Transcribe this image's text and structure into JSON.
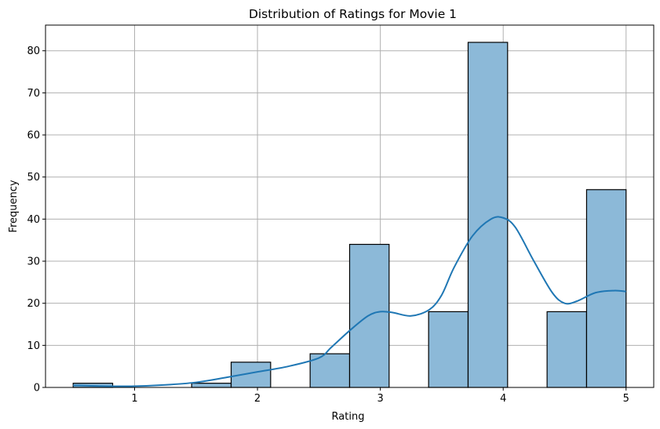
{
  "chart_data": {
    "type": "bar",
    "title": "Distribution of Ratings for Movie 1",
    "xlabel": "Rating",
    "ylabel": "Frequency",
    "xlim": [
      0.275,
      5.225
    ],
    "ylim": [
      0,
      86.1
    ],
    "xticks": [
      1,
      2,
      3,
      4,
      5
    ],
    "yticks": [
      0,
      10,
      20,
      30,
      40,
      50,
      60,
      70,
      80
    ],
    "grid": true,
    "bin_edges": [
      0.5,
      0.8214,
      1.1429,
      1.4643,
      1.7857,
      2.1071,
      2.4286,
      2.75,
      3.0714,
      3.3929,
      3.7143,
      4.0357,
      4.3571,
      4.6786,
      5.0
    ],
    "values": [
      1,
      0,
      0,
      1,
      6,
      0,
      8,
      34,
      0,
      18,
      82,
      0,
      18,
      47
    ],
    "bar_color": "#8cb9d8",
    "bar_edge_color": "#000000",
    "kde": {
      "color": "#1f77b4",
      "x": [
        0.5,
        0.75,
        1.0,
        1.25,
        1.5,
        1.75,
        2.0,
        2.25,
        2.5,
        2.6,
        2.75,
        2.9,
        3.0,
        3.1,
        3.25,
        3.4,
        3.5,
        3.6,
        3.75,
        3.9,
        4.0,
        4.1,
        4.25,
        4.4,
        4.5,
        4.6,
        4.75,
        4.9,
        5.0
      ],
      "y": [
        0.5,
        0.3,
        0.3,
        0.6,
        1.2,
        2.4,
        3.7,
        5.0,
        7.0,
        9.5,
        13.5,
        17.0,
        18.0,
        17.8,
        17.0,
        18.5,
        22.0,
        28.5,
        36.0,
        40.0,
        40.3,
        38.0,
        30.0,
        22.5,
        20.0,
        20.5,
        22.5,
        23.0,
        22.8
      ]
    }
  }
}
